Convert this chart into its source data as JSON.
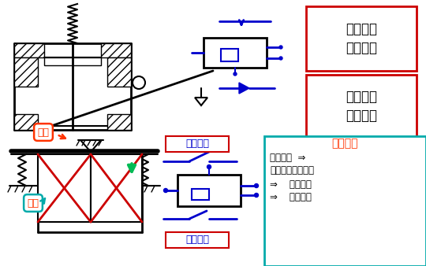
{
  "labels": {
    "chang_kai": "常开触头\n延时闭合",
    "chang_bi": "常闭触头\n延时打开",
    "chang_bi_mid": "常闭触头",
    "chang_kai_mid": "常开触头",
    "dong_tie": "衔铁",
    "xian_quan": "线圈",
    "dong_zuo": "动作过程",
    "line1": "线圈通电  ⇒",
    "line2": "衔铁吸合（向下）",
    "line3": "⇒    连杆动作",
    "line4": "⇒    触头动作"
  },
  "colors": {
    "black": "#000000",
    "blue": "#0000cc",
    "red": "#cc0000",
    "orange_red": "#ff3300",
    "teal": "#00aaaa",
    "green_arrow": "#00bb55"
  }
}
